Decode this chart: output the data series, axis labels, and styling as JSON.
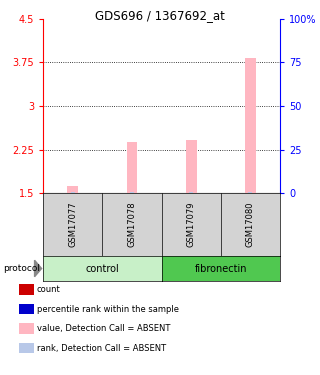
{
  "title": "GDS696 / 1367692_at",
  "samples": [
    "GSM17077",
    "GSM17078",
    "GSM17079",
    "GSM17080"
  ],
  "groups": [
    "control",
    "control",
    "fibronectin",
    "fibronectin"
  ],
  "group_names": [
    "control",
    "fibronectin"
  ],
  "bar_values_absent": [
    1.62,
    2.38,
    2.42,
    3.82
  ],
  "rank_values_absent": [
    1.515,
    1.515,
    1.515,
    1.515
  ],
  "ylim_left": [
    1.5,
    4.5
  ],
  "ylim_right": [
    0,
    100
  ],
  "yticks_left": [
    1.5,
    2.25,
    3.0,
    3.75,
    4.5
  ],
  "yticks_right": [
    0,
    25,
    50,
    75,
    100
  ],
  "ytick_labels_left": [
    "1.5",
    "2.25",
    "3",
    "3.75",
    "4.5"
  ],
  "ytick_labels_right": [
    "0",
    "25",
    "50",
    "75",
    "100%"
  ],
  "bar_color_absent": "#FFB6C1",
  "rank_color_absent": "#B8C8E8",
  "sample_box_color": "#D3D3D3",
  "control_color": "#C8F0C8",
  "fibronectin_color": "#50C850",
  "legend_items": [
    {
      "color": "#CC0000",
      "label": "count"
    },
    {
      "color": "#0000CC",
      "label": "percentile rank within the sample"
    },
    {
      "color": "#FFB6C1",
      "label": "value, Detection Call = ABSENT"
    },
    {
      "color": "#B8C8E8",
      "label": "rank, Detection Call = ABSENT"
    }
  ]
}
